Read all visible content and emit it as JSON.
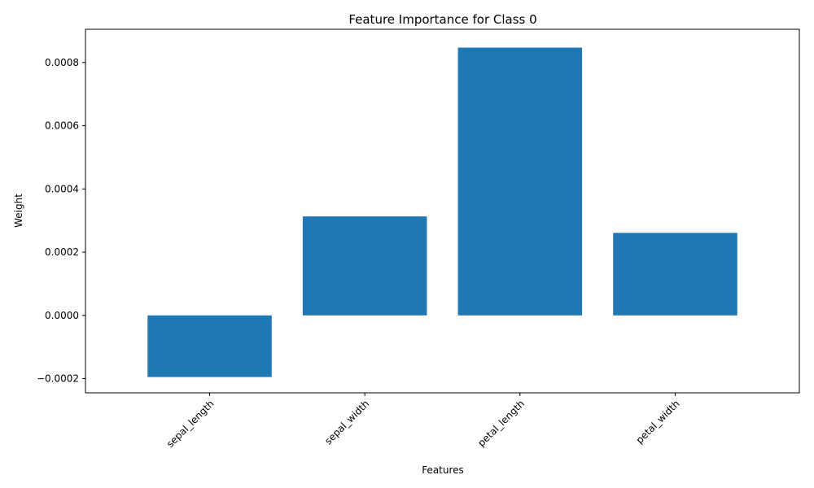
{
  "chart_data": {
    "type": "bar",
    "title": "Feature Importance for Class 0",
    "xlabel": "Features",
    "ylabel": "Weight",
    "categories": [
      "sepal_length",
      "sepal_width",
      "petal_length",
      "petal_width"
    ],
    "values": [
      -0.000195,
      0.000313,
      0.000847,
      0.000261
    ],
    "ylim": [
      -0.000245,
      0.000905
    ],
    "yticks": [
      {
        "value": -0.0002,
        "label": "−0.0002"
      },
      {
        "value": 0.0,
        "label": "0.0000"
      },
      {
        "value": 0.0002,
        "label": "0.0002"
      },
      {
        "value": 0.0004,
        "label": "0.0004"
      },
      {
        "value": 0.0006,
        "label": "0.0006"
      },
      {
        "value": 0.0008,
        "label": "0.0008"
      }
    ],
    "bar_color": "#1f77b4",
    "grid": false,
    "legend": false
  }
}
